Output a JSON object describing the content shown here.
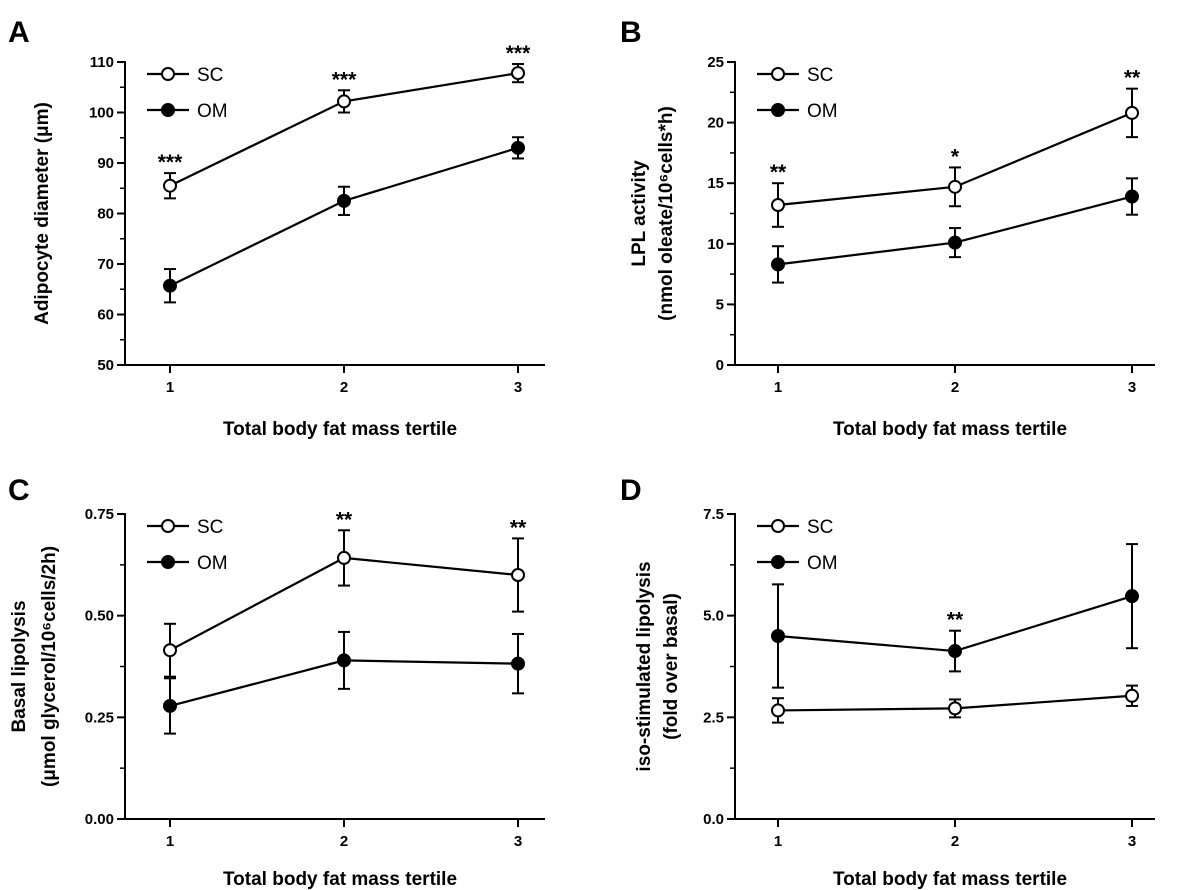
{
  "chart_data": [
    {
      "type": "line",
      "panel": "A",
      "x": [
        1,
        2,
        3
      ],
      "xlabel": "Total body fat mass tertile",
      "ylabel": "Adipocyte diameter (μm)",
      "ylabel2": "",
      "ylim": [
        50,
        110
      ],
      "yticks": [
        "50",
        "60",
        "70",
        "80",
        "90",
        "100",
        "110"
      ],
      "xticks": [
        "1",
        "2",
        "3"
      ],
      "legend": "top-left",
      "series": [
        {
          "name": "SC",
          "marker": "open-circle",
          "values": [
            85.5,
            102.2,
            107.8
          ],
          "errors": [
            2.5,
            2.2,
            1.8
          ]
        },
        {
          "name": "OM",
          "marker": "filled-circle",
          "values": [
            65.7,
            82.5,
            93.0
          ],
          "errors": [
            3.3,
            2.8,
            2.1
          ]
        }
      ],
      "annotations": [
        {
          "x": 1,
          "y": 88,
          "text": "***"
        },
        {
          "x": 2,
          "y": 104.4,
          "text": "***"
        },
        {
          "x": 3,
          "y": 109.6,
          "text": "***"
        }
      ]
    },
    {
      "type": "line",
      "panel": "B",
      "x": [
        1,
        2,
        3
      ],
      "xlabel": "Total body fat mass tertile",
      "ylabel": "LPL activity",
      "ylabel2": "(nmol oleate/10⁶cells*h)",
      "ylim": [
        0,
        25
      ],
      "yticks": [
        "0",
        "5",
        "10",
        "15",
        "20",
        "25"
      ],
      "xticks": [
        "1",
        "2",
        "3"
      ],
      "legend": "top-left",
      "series": [
        {
          "name": "SC",
          "marker": "open-circle",
          "values": [
            13.2,
            14.7,
            20.8
          ],
          "errors": [
            1.8,
            1.6,
            2.0
          ]
        },
        {
          "name": "OM",
          "marker": "filled-circle",
          "values": [
            8.3,
            10.1,
            13.9
          ],
          "errors": [
            1.5,
            1.2,
            1.5
          ]
        }
      ],
      "annotations": [
        {
          "x": 1,
          "y": 15,
          "text": "**"
        },
        {
          "x": 2,
          "y": 16.3,
          "text": "*"
        },
        {
          "x": 3,
          "y": 22.8,
          "text": "**"
        }
      ]
    },
    {
      "type": "line",
      "panel": "C",
      "x": [
        1,
        2,
        3
      ],
      "xlabel": "Total body fat mass tertile",
      "ylabel": "Basal lipolysis",
      "ylabel2": "(μmol glycerol/10⁶cells/2h)",
      "ylim": [
        0,
        0.75
      ],
      "yticks": [
        "0.00",
        "0.25",
        "0.50",
        "0.75"
      ],
      "xticks": [
        "1",
        "2",
        "3"
      ],
      "legend": "top-left",
      "series": [
        {
          "name": "SC",
          "marker": "open-circle",
          "values": [
            0.415,
            0.642,
            0.6
          ],
          "errors": [
            0.065,
            0.068,
            0.09
          ]
        },
        {
          "name": "OM",
          "marker": "filled-circle",
          "values": [
            0.278,
            0.39,
            0.382
          ],
          "errors": [
            0.068,
            0.07,
            0.073
          ]
        }
      ],
      "annotations": [
        {
          "x": 2,
          "y": 0.71,
          "text": "**"
        },
        {
          "x": 3,
          "y": 0.69,
          "text": "**"
        }
      ]
    },
    {
      "type": "line",
      "panel": "D",
      "x": [
        1,
        2,
        3
      ],
      "xlabel": "Total body fat mass tertile",
      "ylabel": "iso-stimulated lipolysis",
      "ylabel2": "(fold over basal)",
      "ylim": [
        0,
        7.5
      ],
      "yticks": [
        "0.0",
        "2.5",
        "5.0",
        "7.5"
      ],
      "xticks": [
        "1",
        "2",
        "3"
      ],
      "legend": "top-left",
      "series": [
        {
          "name": "SC",
          "marker": "open-circle",
          "values": [
            2.67,
            2.72,
            3.03
          ],
          "errors": [
            0.3,
            0.22,
            0.25
          ]
        },
        {
          "name": "OM",
          "marker": "filled-circle",
          "values": [
            4.5,
            4.13,
            5.48
          ],
          "errors": [
            1.27,
            0.5,
            1.28
          ]
        }
      ],
      "annotations": [
        {
          "x": 2,
          "y": 4.63,
          "text": "**"
        }
      ]
    }
  ]
}
